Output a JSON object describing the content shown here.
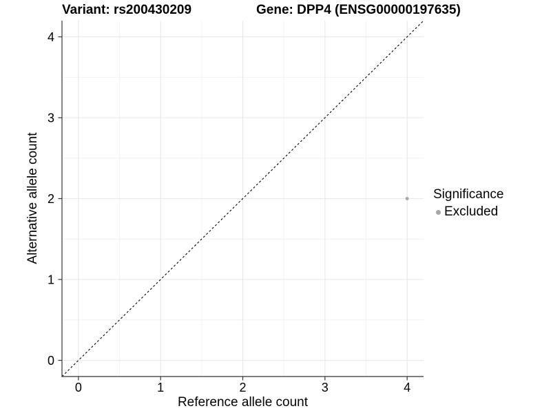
{
  "chart_data": {
    "type": "scatter",
    "title_variant": "Variant: rs200430209",
    "title_gene": "Gene: DPP4 (ENSG00000197635)",
    "xlabel": "Reference allele count",
    "ylabel": "Alternative allele count",
    "x_ticks": [
      0,
      1,
      2,
      3,
      4
    ],
    "y_ticks": [
      0,
      1,
      2,
      3,
      4
    ],
    "xlim": [
      -0.2,
      4.2
    ],
    "ylim": [
      -0.2,
      4.2
    ],
    "grid": "major+minor",
    "reference_line": {
      "kind": "identity",
      "equation": "y = x",
      "style": "dashed",
      "color": "#000000"
    },
    "series": [
      {
        "name": "Excluded",
        "color": "#a6a6a6",
        "points": [
          {
            "x": 4,
            "y": 2
          }
        ]
      }
    ],
    "legend": {
      "title": "Significance",
      "position": "right",
      "items": [
        {
          "label": "Excluded",
          "color": "#a6a6a6",
          "marker": "circle"
        }
      ]
    }
  }
}
